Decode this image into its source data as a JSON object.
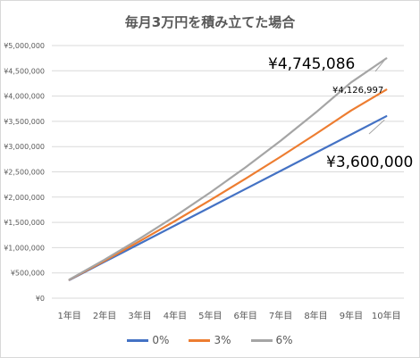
{
  "chart_data": {
    "type": "line",
    "title": "毎月3万円を積み立てた場合",
    "categories": [
      "1年目",
      "2年目",
      "3年目",
      "4年目",
      "5年目",
      "6年目",
      "7年目",
      "8年目",
      "9年目",
      "10年目"
    ],
    "series": [
      {
        "name": "0%",
        "color": "#4472c4",
        "values": [
          360000,
          720000,
          1080000,
          1440000,
          1800000,
          2160000,
          2520000,
          2880000,
          3240000,
          3600000
        ]
      },
      {
        "name": "3%",
        "color": "#ed7d31",
        "values": [
          365000,
          741000,
          1129000,
          1528000,
          1940000,
          2364000,
          2801000,
          3251000,
          3714000,
          4126997
        ]
      },
      {
        "name": "6%",
        "color": "#a5a5a5",
        "values": [
          370000,
          763000,
          1180000,
          1622000,
          2091000,
          2589000,
          3116000,
          3676000,
          4270000,
          4745086
        ]
      }
    ],
    "ylim": [
      0,
      5000000
    ],
    "yticks": [
      "¥0",
      "¥500,000",
      "¥1,000,000",
      "¥1,500,000",
      "¥2,000,000",
      "¥2,500,000",
      "¥3,000,000",
      "¥3,500,000",
      "¥4,000,000",
      "¥4,500,000",
      "¥5,000,000"
    ],
    "grid": true,
    "legend": "bottom",
    "annotations": [
      {
        "text": "¥4,745,086",
        "series": 2,
        "size": "large"
      },
      {
        "text": "¥4,126,997",
        "series": 1,
        "size": "small"
      },
      {
        "text": "¥3,600,000",
        "series": 0,
        "size": "large"
      }
    ]
  }
}
